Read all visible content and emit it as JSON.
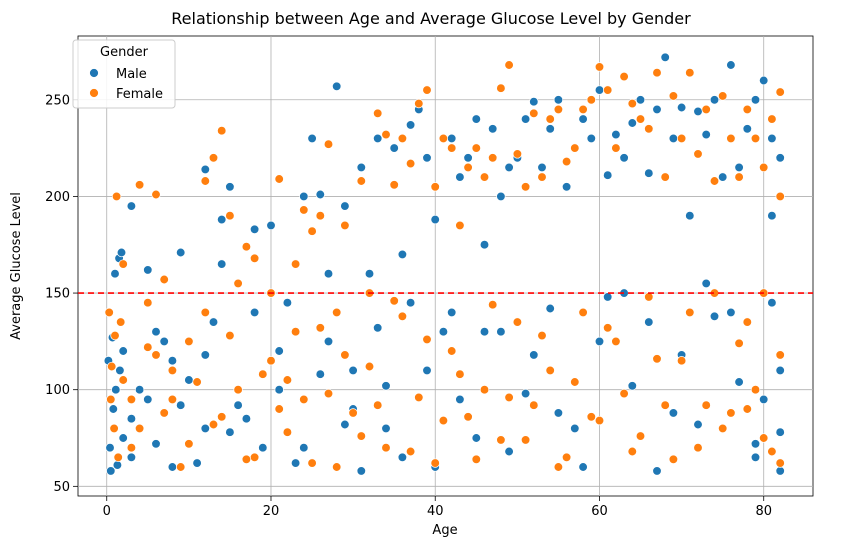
{
  "chart_data": {
    "type": "scatter",
    "title": "Relationship between Age and Average Glucose Level by Gender",
    "xlabel": "Age",
    "ylabel": "Average Glucose Level",
    "xlim": [
      -3.5,
      86
    ],
    "ylim": [
      45,
      283
    ],
    "xticks": [
      0,
      20,
      40,
      60,
      80
    ],
    "yticks": [
      50,
      100,
      150,
      200,
      250
    ],
    "grid": true,
    "legend": {
      "title": "Gender",
      "placement": "top-left"
    },
    "reference_line": {
      "y": 150,
      "style": "dashed",
      "color": "#ff0000"
    },
    "series": [
      {
        "name": "Male",
        "color": "#1f77b4",
        "points": [
          [
            0.2,
            115
          ],
          [
            0.4,
            70
          ],
          [
            0.5,
            58
          ],
          [
            0.7,
            127
          ],
          [
            0.8,
            90
          ],
          [
            1.0,
            160
          ],
          [
            1.1,
            100
          ],
          [
            1.3,
            61
          ],
          [
            1.5,
            168
          ],
          [
            1.6,
            110
          ],
          [
            1.8,
            171
          ],
          [
            2.0,
            75
          ],
          [
            3,
            195
          ],
          [
            3,
            85
          ],
          [
            5,
            162
          ],
          [
            5,
            95
          ],
          [
            7,
            125
          ],
          [
            8,
            60
          ],
          [
            9,
            171
          ],
          [
            10,
            105
          ],
          [
            12,
            214
          ],
          [
            12,
            80
          ],
          [
            14,
            188
          ],
          [
            14,
            165
          ],
          [
            15,
            205
          ],
          [
            16,
            92
          ],
          [
            18,
            183
          ],
          [
            19,
            70
          ],
          [
            20,
            185
          ],
          [
            21,
            120
          ],
          [
            22,
            145
          ],
          [
            24,
            200
          ],
          [
            25,
            230
          ],
          [
            26,
            201
          ],
          [
            27,
            160
          ],
          [
            28,
            257
          ],
          [
            29,
            195
          ],
          [
            30,
            110
          ],
          [
            31,
            215
          ],
          [
            32,
            160
          ],
          [
            33,
            230
          ],
          [
            34,
            80
          ],
          [
            35,
            225
          ],
          [
            36,
            170
          ],
          [
            37,
            237
          ],
          [
            38,
            245
          ],
          [
            39,
            220
          ],
          [
            40,
            188
          ],
          [
            41,
            130
          ],
          [
            42,
            230
          ],
          [
            43,
            210
          ],
          [
            44,
            220
          ],
          [
            45,
            240
          ],
          [
            46,
            175
          ],
          [
            47,
            235
          ],
          [
            48,
            200
          ],
          [
            49,
            215
          ],
          [
            50,
            220
          ],
          [
            51,
            240
          ],
          [
            52,
            249
          ],
          [
            53,
            215
          ],
          [
            54,
            235
          ],
          [
            55,
            250
          ],
          [
            56,
            205
          ],
          [
            57,
            225
          ],
          [
            58,
            240
          ],
          [
            59,
            230
          ],
          [
            60,
            255
          ],
          [
            61,
            211
          ],
          [
            62,
            232
          ],
          [
            63,
            220
          ],
          [
            64,
            238
          ],
          [
            65,
            250
          ],
          [
            66,
            212
          ],
          [
            67,
            245
          ],
          [
            68,
            272
          ],
          [
            69,
            230
          ],
          [
            70,
            246
          ],
          [
            71,
            190
          ],
          [
            72,
            244
          ],
          [
            73,
            232
          ],
          [
            74,
            250
          ],
          [
            75,
            210
          ],
          [
            76,
            268
          ],
          [
            77,
            215
          ],
          [
            78,
            235
          ],
          [
            79,
            250
          ],
          [
            80,
            260
          ],
          [
            80,
            95
          ],
          [
            81,
            230
          ],
          [
            81,
            190
          ],
          [
            82,
            220
          ],
          [
            82,
            110
          ],
          [
            82,
            58
          ],
          [
            79,
            72
          ],
          [
            76,
            140
          ],
          [
            73,
            155
          ],
          [
            69,
            88
          ],
          [
            66,
            135
          ],
          [
            63,
            150
          ],
          [
            60,
            125
          ],
          [
            57,
            80
          ],
          [
            54,
            142
          ],
          [
            51,
            98
          ],
          [
            48,
            130
          ],
          [
            45,
            75
          ],
          [
            42,
            140
          ],
          [
            39,
            110
          ],
          [
            36,
            65
          ],
          [
            33,
            132
          ],
          [
            30,
            90
          ],
          [
            27,
            125
          ],
          [
            24,
            70
          ],
          [
            21,
            100
          ],
          [
            18,
            140
          ],
          [
            15,
            78
          ],
          [
            12,
            118
          ],
          [
            9,
            92
          ],
          [
            6,
            130
          ],
          [
            3,
            65
          ],
          [
            2,
            120
          ],
          [
            4,
            100
          ],
          [
            6,
            72
          ],
          [
            8,
            115
          ],
          [
            11,
            62
          ],
          [
            13,
            135
          ],
          [
            17,
            85
          ],
          [
            23,
            62
          ],
          [
            26,
            108
          ],
          [
            29,
            82
          ],
          [
            31,
            58
          ],
          [
            34,
            102
          ],
          [
            37,
            145
          ],
          [
            40,
            60
          ],
          [
            43,
            95
          ],
          [
            46,
            130
          ],
          [
            49,
            68
          ],
          [
            52,
            118
          ],
          [
            55,
            88
          ],
          [
            58,
            60
          ],
          [
            61,
            148
          ],
          [
            64,
            102
          ],
          [
            67,
            58
          ],
          [
            70,
            118
          ],
          [
            72,
            82
          ],
          [
            74,
            138
          ],
          [
            77,
            104
          ],
          [
            79,
            65
          ],
          [
            81,
            145
          ],
          [
            82,
            78
          ]
        ]
      },
      {
        "name": "Female",
        "color": "#ff7f0e",
        "points": [
          [
            0.3,
            140
          ],
          [
            0.6,
            112
          ],
          [
            0.9,
            80
          ],
          [
            1.2,
            200
          ],
          [
            1.4,
            65
          ],
          [
            1.7,
            135
          ],
          [
            2,
            165
          ],
          [
            3,
            95
          ],
          [
            4,
            206
          ],
          [
            5,
            145
          ],
          [
            6,
            201
          ],
          [
            7,
            157
          ],
          [
            8,
            110
          ],
          [
            10,
            125
          ],
          [
            12,
            208
          ],
          [
            13,
            220
          ],
          [
            14,
            234
          ],
          [
            15,
            190
          ],
          [
            16,
            155
          ],
          [
            17,
            174
          ],
          [
            18,
            168
          ],
          [
            20,
            150
          ],
          [
            21,
            209
          ],
          [
            22,
            105
          ],
          [
            23,
            165
          ],
          [
            24,
            193
          ],
          [
            25,
            182
          ],
          [
            26,
            190
          ],
          [
            27,
            227
          ],
          [
            28,
            140
          ],
          [
            29,
            185
          ],
          [
            31,
            208
          ],
          [
            32,
            150
          ],
          [
            33,
            243
          ],
          [
            34,
            232
          ],
          [
            35,
            206
          ],
          [
            36,
            230
          ],
          [
            37,
            217
          ],
          [
            38,
            248
          ],
          [
            39,
            255
          ],
          [
            40,
            205
          ],
          [
            41,
            230
          ],
          [
            42,
            225
          ],
          [
            43,
            185
          ],
          [
            44,
            215
          ],
          [
            45,
            225
          ],
          [
            46,
            210
          ],
          [
            47,
            220
          ],
          [
            48,
            256
          ],
          [
            49,
            268
          ],
          [
            50,
            222
          ],
          [
            51,
            205
          ],
          [
            52,
            243
          ],
          [
            53,
            210
          ],
          [
            54,
            240
          ],
          [
            55,
            245
          ],
          [
            56,
            218
          ],
          [
            57,
            225
          ],
          [
            58,
            245
          ],
          [
            59,
            250
          ],
          [
            60,
            267
          ],
          [
            61,
            255
          ],
          [
            62,
            225
          ],
          [
            63,
            262
          ],
          [
            64,
            248
          ],
          [
            65,
            240
          ],
          [
            66,
            235
          ],
          [
            67,
            264
          ],
          [
            68,
            210
          ],
          [
            69,
            252
          ],
          [
            70,
            230
          ],
          [
            71,
            264
          ],
          [
            72,
            222
          ],
          [
            73,
            245
          ],
          [
            74,
            208
          ],
          [
            75,
            252
          ],
          [
            76,
            230
          ],
          [
            77,
            210
          ],
          [
            78,
            245
          ],
          [
            79,
            230
          ],
          [
            80,
            215
          ],
          [
            81,
            240
          ],
          [
            82,
            254
          ],
          [
            82,
            200
          ],
          [
            82,
            62
          ],
          [
            80,
            75
          ],
          [
            78,
            135
          ],
          [
            76,
            88
          ],
          [
            74,
            150
          ],
          [
            72,
            70
          ],
          [
            70,
            115
          ],
          [
            68,
            92
          ],
          [
            66,
            148
          ],
          [
            64,
            68
          ],
          [
            62,
            125
          ],
          [
            60,
            84
          ],
          [
            58,
            140
          ],
          [
            56,
            65
          ],
          [
            54,
            110
          ],
          [
            52,
            92
          ],
          [
            50,
            135
          ],
          [
            48,
            74
          ],
          [
            46,
            100
          ],
          [
            44,
            86
          ],
          [
            42,
            120
          ],
          [
            40,
            62
          ],
          [
            38,
            96
          ],
          [
            36,
            138
          ],
          [
            34,
            70
          ],
          [
            32,
            112
          ],
          [
            30,
            88
          ],
          [
            28,
            60
          ],
          [
            26,
            132
          ],
          [
            24,
            95
          ],
          [
            22,
            78
          ],
          [
            20,
            115
          ],
          [
            18,
            65
          ],
          [
            16,
            100
          ],
          [
            14,
            86
          ],
          [
            12,
            140
          ],
          [
            10,
            72
          ],
          [
            8,
            95
          ],
          [
            6,
            118
          ],
          [
            4,
            80
          ],
          [
            2,
            105
          ],
          [
            1,
            128
          ],
          [
            0.5,
            95
          ],
          [
            3,
            70
          ],
          [
            5,
            122
          ],
          [
            7,
            88
          ],
          [
            9,
            60
          ],
          [
            11,
            104
          ],
          [
            13,
            82
          ],
          [
            15,
            128
          ],
          [
            17,
            64
          ],
          [
            19,
            108
          ],
          [
            21,
            90
          ],
          [
            23,
            130
          ],
          [
            25,
            62
          ],
          [
            27,
            98
          ],
          [
            29,
            118
          ],
          [
            31,
            76
          ],
          [
            33,
            92
          ],
          [
            35,
            146
          ],
          [
            37,
            68
          ],
          [
            39,
            126
          ],
          [
            41,
            84
          ],
          [
            43,
            108
          ],
          [
            45,
            64
          ],
          [
            47,
            144
          ],
          [
            49,
            96
          ],
          [
            51,
            74
          ],
          [
            53,
            128
          ],
          [
            55,
            60
          ],
          [
            57,
            104
          ],
          [
            59,
            86
          ],
          [
            61,
            132
          ],
          [
            63,
            98
          ],
          [
            65,
            76
          ],
          [
            67,
            116
          ],
          [
            69,
            64
          ],
          [
            71,
            140
          ],
          [
            73,
            92
          ],
          [
            75,
            80
          ],
          [
            77,
            124
          ],
          [
            79,
            100
          ],
          [
            81,
            68
          ],
          [
            82,
            118
          ],
          [
            80,
            150
          ],
          [
            78,
            90
          ]
        ]
      }
    ]
  }
}
